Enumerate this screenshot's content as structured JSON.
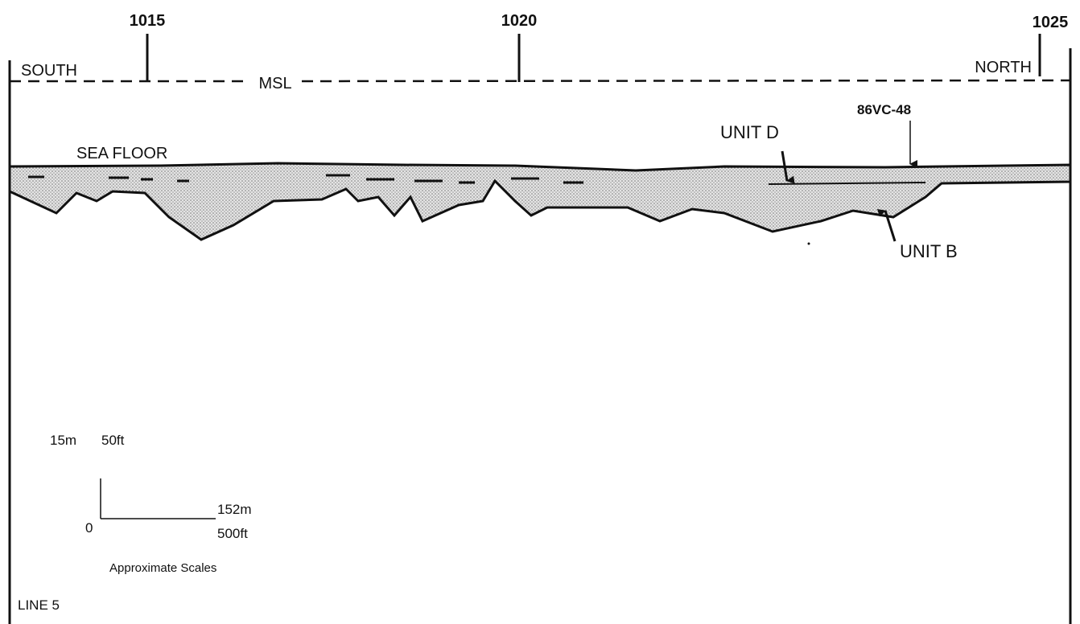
{
  "fix_marks": [
    "1015",
    "1020",
    "1025"
  ],
  "directions": {
    "left": "SOUTH",
    "right": "NORTH"
  },
  "datum": "MSL",
  "labels": {
    "sea_floor": "SEA FLOOR",
    "unit_d": "UNIT D",
    "core": "86VC-48",
    "unit_b": "UNIT B"
  },
  "scale": {
    "vertical_m": "15m",
    "vertical_ft": "50ft",
    "origin": "0",
    "horizontal_m": "152m",
    "horizontal_ft": "500ft",
    "caption": "Approximate Scales"
  },
  "line_name": "LINE 5"
}
